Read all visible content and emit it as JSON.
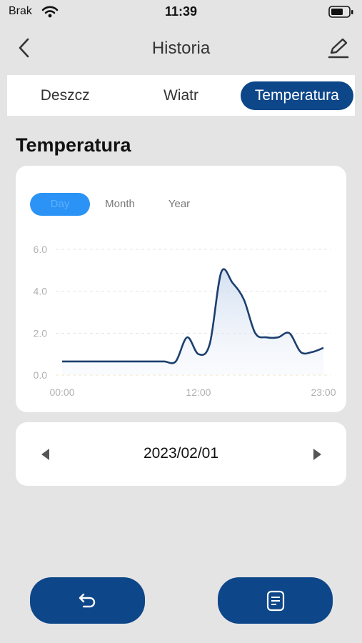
{
  "status_bar": {
    "carrier": "Brak",
    "time": "11:39"
  },
  "header": {
    "title": "Historia"
  },
  "tabs": {
    "items": [
      "Deszcz",
      "Wiatr",
      "Temperatura"
    ],
    "active": 2
  },
  "section_title": "Temperatura",
  "period_buttons": {
    "items": [
      "Day",
      "Month",
      "Year"
    ],
    "active": 0
  },
  "chart_data": {
    "type": "line",
    "x": [
      0,
      1,
      2,
      3,
      4,
      5,
      6,
      7,
      8,
      9,
      10,
      11,
      12,
      13,
      14,
      15,
      16,
      17,
      18,
      19,
      20,
      21,
      22,
      23
    ],
    "series": [
      {
        "color": "#1c3f6e",
        "values": [
          0.65,
          0.65,
          0.65,
          0.65,
          0.65,
          0.65,
          0.65,
          0.65,
          0.65,
          0.65,
          0.65,
          1.8,
          1.0,
          1.5,
          4.9,
          4.4,
          3.6,
          2.0,
          1.8,
          1.8,
          2.0,
          1.1,
          1.1,
          1.3
        ]
      }
    ],
    "xlim": [
      0,
      23
    ],
    "xticks": [
      {
        "value": 0,
        "label": "00:00"
      },
      {
        "value": 12,
        "label": "12:00"
      },
      {
        "value": 23,
        "label": "23:00"
      }
    ],
    "ylim": [
      0,
      6
    ],
    "yticks": [
      {
        "value": 0,
        "label": "0.0"
      },
      {
        "value": 2,
        "label": "2.0"
      },
      {
        "value": 4,
        "label": "4.0"
      },
      {
        "value": 6,
        "label": "6.0"
      }
    ],
    "grid": true
  },
  "date": "2023/02/01"
}
